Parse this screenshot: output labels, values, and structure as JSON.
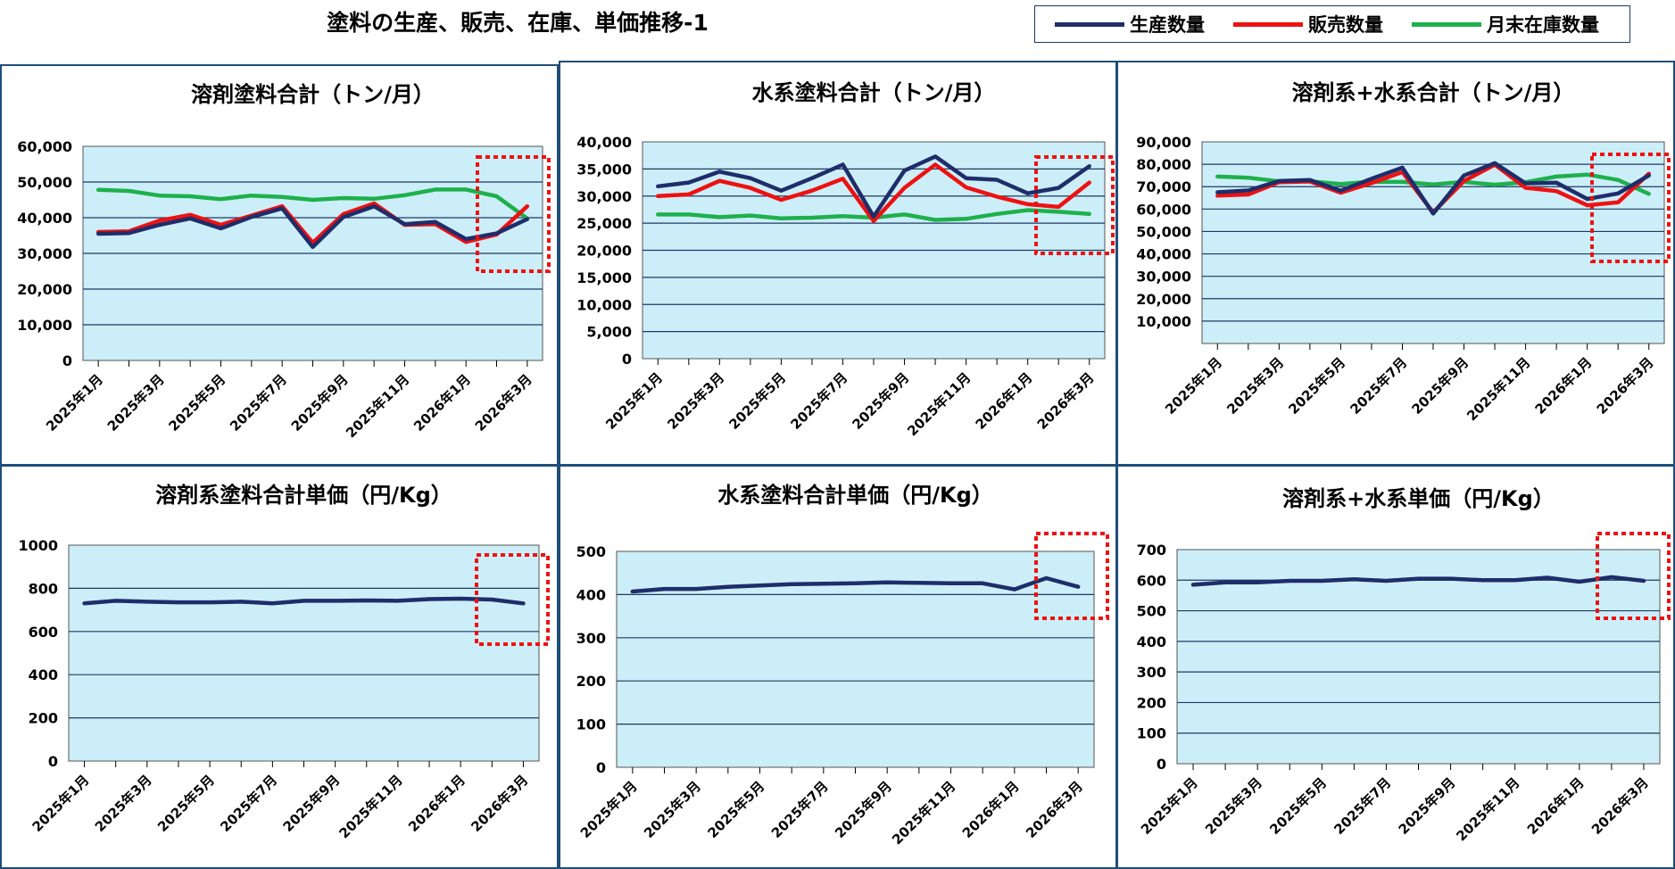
{
  "page": {
    "title": "塗料の生産、販売、在庫、単価推移-1"
  },
  "legend": [
    {
      "name": "生産数量",
      "color": "#1F2D6B"
    },
    {
      "name": "販売数量",
      "color": "#EE1111"
    },
    {
      "name": "月末在庫数量",
      "color": "#1EB04C"
    }
  ],
  "colors": {
    "plot_bg": "#CCEEF8",
    "panel_border": "#1F4E79",
    "highlight_box": "#EE1111"
  },
  "x_tick_labels": [
    "2025年1月",
    "2025年3月",
    "2025年5月",
    "2025年7月",
    "2025年9月",
    "2025年11月",
    "2026年1月",
    "2026年3月"
  ],
  "chart_data": [
    {
      "type": "line",
      "title": "溶剤塗料合計（トン/月）",
      "y_ticks": [
        "60,000",
        "50,000",
        "40,000",
        "30,000",
        "20,000",
        "10,000",
        "0"
      ],
      "ylim": [
        0,
        60000
      ],
      "grid": true,
      "x": [
        "2025年1月",
        "2025年2月",
        "2025年3月",
        "2025年4月",
        "2025年5月",
        "2025年6月",
        "2025年7月",
        "2025年8月",
        "2025年9月",
        "2025年10月",
        "2025年11月",
        "2025年12月",
        "2026年1月",
        "2026年2月",
        "2026年3月"
      ],
      "series": [
        {
          "name": "生産数量",
          "values": [
            35500,
            35700,
            38000,
            39800,
            37000,
            40200,
            42600,
            31800,
            40200,
            43200,
            38200,
            38800,
            34000,
            35600,
            39600
          ]
        },
        {
          "name": "販売数量",
          "values": [
            36000,
            36200,
            39200,
            40800,
            38000,
            40600,
            43200,
            33000,
            41000,
            44000,
            38000,
            38200,
            33200,
            35300,
            43200
          ]
        },
        {
          "name": "月末在庫数量",
          "values": [
            47800,
            47500,
            46200,
            46000,
            45200,
            46200,
            45800,
            45000,
            45500,
            45300,
            46300,
            47900,
            47900,
            46000,
            39800
          ]
        }
      ]
    },
    {
      "type": "line",
      "title": "水系塗料合計（トン/月）",
      "y_ticks": [
        "40,000",
        "35,000",
        "30,000",
        "25,000",
        "20,000",
        "15,000",
        "10,000",
        "5,000",
        "0"
      ],
      "ylim": [
        0,
        40000
      ],
      "grid": true,
      "x": [
        "2025年1月",
        "2025年2月",
        "2025年3月",
        "2025年4月",
        "2025年5月",
        "2025年6月",
        "2025年7月",
        "2025年8月",
        "2025年9月",
        "2025年10月",
        "2025年11月",
        "2025年12月",
        "2026年1月",
        "2026年2月",
        "2026年3月"
      ],
      "series": [
        {
          "name": "生産数量",
          "values": [
            31800,
            32500,
            34500,
            33300,
            31000,
            33300,
            35800,
            26200,
            34700,
            37300,
            33300,
            33000,
            30500,
            31500,
            35500
          ]
        },
        {
          "name": "販売数量",
          "values": [
            30000,
            30300,
            32800,
            31500,
            29300,
            31000,
            33200,
            25400,
            31500,
            35800,
            31600,
            29900,
            28500,
            28000,
            32500
          ]
        },
        {
          "name": "月末在庫数量",
          "values": [
            26600,
            26600,
            26100,
            26400,
            25900,
            26000,
            26300,
            26000,
            26600,
            25600,
            25800,
            26700,
            27400,
            27100,
            26700
          ]
        }
      ]
    },
    {
      "type": "line",
      "title": "溶剤系+水系合計（トン/月）",
      "y_ticks": [
        "90,000",
        "80,000",
        "70,000",
        "60,000",
        "50,000",
        "40,000",
        "30,000",
        "20,000",
        "10,000"
      ],
      "ylim": [
        0,
        90000
      ],
      "grid": true,
      "x": [
        "2025年1月",
        "2025年2月",
        "2025年3月",
        "2025年4月",
        "2025年5月",
        "2025年6月",
        "2025年7月",
        "2025年8月",
        "2025年9月",
        "2025年10月",
        "2025年11月",
        "2025年12月",
        "2026年1月",
        "2026年2月",
        "2026年3月"
      ],
      "series": [
        {
          "name": "生産数量",
          "values": [
            67500,
            68300,
            72500,
            73000,
            68200,
            73500,
            78500,
            58000,
            75000,
            80500,
            71500,
            71800,
            64500,
            67000,
            75000
          ]
        },
        {
          "name": "販売数量",
          "values": [
            66000,
            66500,
            72000,
            72300,
            67300,
            71600,
            76500,
            58500,
            72500,
            79800,
            69500,
            68000,
            61700,
            63000,
            75800
          ]
        },
        {
          "name": "月末在庫数量",
          "values": [
            74500,
            74000,
            72400,
            72400,
            71200,
            72200,
            72100,
            71000,
            72100,
            70900,
            72000,
            74500,
            75400,
            73000,
            66800
          ]
        }
      ]
    },
    {
      "type": "line",
      "title": "溶剤系塗料合計単価（円/Kg）",
      "y_ticks": [
        "1000",
        "800",
        "600",
        "400",
        "200",
        "0"
      ],
      "ylim": [
        0,
        1000
      ],
      "grid": true,
      "x": [
        "2025年1月",
        "2025年2月",
        "2025年3月",
        "2025年4月",
        "2025年5月",
        "2025年6月",
        "2025年7月",
        "2025年8月",
        "2025年9月",
        "2025年10月",
        "2025年11月",
        "2025年12月",
        "2026年1月",
        "2026年2月",
        "2026年3月"
      ],
      "series": [
        {
          "name": "単価",
          "values": [
            730,
            742,
            738,
            735,
            735,
            738,
            730,
            742,
            742,
            744,
            742,
            750,
            752,
            748,
            730
          ]
        }
      ]
    },
    {
      "type": "line",
      "title": "水系塗料合計単価（円/Kg）",
      "y_ticks": [
        "500",
        "400",
        "300",
        "200",
        "100",
        "0"
      ],
      "ylim": [
        0,
        500
      ],
      "grid": true,
      "x": [
        "2025年1月",
        "2025年2月",
        "2025年3月",
        "2025年4月",
        "2025年5月",
        "2025年6月",
        "2025年7月",
        "2025年8月",
        "2025年9月",
        "2025年10月",
        "2025年11月",
        "2025年12月",
        "2026年1月",
        "2026年2月",
        "2026年3月"
      ],
      "series": [
        {
          "name": "単価",
          "values": [
            407,
            413,
            413,
            418,
            421,
            424,
            425,
            426,
            428,
            427,
            426,
            426,
            412,
            438,
            418
          ]
        }
      ]
    },
    {
      "type": "line",
      "title": "溶剤系+水系単価（円/Kg）",
      "y_ticks": [
        "700",
        "600",
        "500",
        "400",
        "300",
        "200",
        "100",
        "0"
      ],
      "ylim": [
        0,
        700
      ],
      "grid": true,
      "x": [
        "2025年1月",
        "2025年2月",
        "2025年3月",
        "2025年4月",
        "2025年5月",
        "2025年6月",
        "2025年7月",
        "2025年8月",
        "2025年9月",
        "2025年10月",
        "2025年11月",
        "2025年12月",
        "2026年1月",
        "2026年2月",
        "2026年3月"
      ],
      "series": [
        {
          "name": "単価",
          "values": [
            585,
            593,
            593,
            598,
            598,
            603,
            598,
            605,
            605,
            600,
            600,
            608,
            595,
            610,
            598
          ]
        }
      ]
    }
  ]
}
